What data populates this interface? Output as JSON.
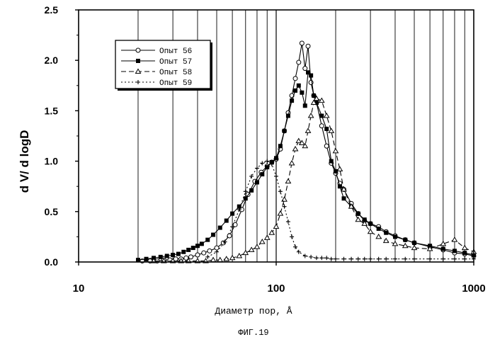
{
  "figure_caption": "ФИГ.19",
  "chart_data": {
    "type": "line",
    "xscale": "log",
    "xlim": [
      10,
      1000
    ],
    "ylim": [
      0,
      2.5
    ],
    "xlabel": "Диаметр пор, Å",
    "ylabel": "d V/ d logD",
    "x_ticks": [
      "10",
      "100",
      "1000"
    ],
    "y_ticks": [
      "0.0",
      "0.5",
      "1.0",
      "1.5",
      "2.0",
      "2.5"
    ],
    "grid": "vertical",
    "legend_position": "top-left",
    "series": [
      {
        "name": "Опыт 56",
        "marker": "open-circle",
        "line": "solid",
        "x": [
          21,
          23,
          25,
          27,
          29,
          31,
          33,
          35,
          37,
          40,
          43,
          46,
          50,
          54,
          58,
          62,
          67,
          72,
          78,
          84,
          90,
          95,
          100,
          105,
          110,
          115,
          120,
          125,
          130,
          135,
          140,
          145,
          150,
          155,
          160,
          170,
          180,
          190,
          200,
          210,
          220,
          240,
          260,
          280,
          300,
          330,
          360,
          400,
          450,
          500,
          600,
          700,
          800,
          900,
          1000
        ],
        "y": [
          0.01,
          0.01,
          0.01,
          0.02,
          0.02,
          0.03,
          0.03,
          0.04,
          0.05,
          0.07,
          0.09,
          0.11,
          0.14,
          0.19,
          0.26,
          0.37,
          0.52,
          0.67,
          0.8,
          0.89,
          0.95,
          0.99,
          1.02,
          1.12,
          1.3,
          1.48,
          1.65,
          1.82,
          1.98,
          2.17,
          1.92,
          2.14,
          1.78,
          1.65,
          1.58,
          1.35,
          1.15,
          0.98,
          0.88,
          0.78,
          0.72,
          0.58,
          0.48,
          0.41,
          0.38,
          0.35,
          0.3,
          0.26,
          0.22,
          0.19,
          0.15,
          0.12,
          0.09,
          0.08,
          0.06
        ]
      },
      {
        "name": "Опыт 57",
        "marker": "filled-square",
        "line": "solid",
        "x": [
          20,
          22,
          24,
          26,
          28,
          30,
          32,
          34,
          36,
          38,
          40,
          42,
          45,
          48,
          52,
          56,
          60,
          65,
          70,
          75,
          80,
          85,
          90,
          95,
          100,
          105,
          110,
          115,
          120,
          125,
          130,
          135,
          140,
          145,
          150,
          155,
          160,
          170,
          180,
          190,
          200,
          210,
          220,
          240,
          260,
          280,
          300,
          330,
          360,
          400,
          450,
          500,
          600,
          700,
          800,
          900,
          1000
        ],
        "y": [
          0.02,
          0.03,
          0.04,
          0.05,
          0.06,
          0.07,
          0.08,
          0.1,
          0.12,
          0.14,
          0.16,
          0.18,
          0.22,
          0.27,
          0.34,
          0.41,
          0.48,
          0.55,
          0.63,
          0.71,
          0.79,
          0.87,
          0.94,
          0.99,
          1.03,
          1.15,
          1.3,
          1.45,
          1.6,
          1.7,
          1.75,
          1.68,
          1.55,
          1.88,
          1.85,
          1.65,
          1.58,
          1.45,
          1.32,
          1.0,
          0.9,
          0.75,
          0.63,
          0.55,
          0.48,
          0.42,
          0.38,
          0.33,
          0.29,
          0.25,
          0.22,
          0.19,
          0.16,
          0.13,
          0.11,
          0.09,
          0.07
        ]
      },
      {
        "name": "Опыт 58",
        "marker": "open-triangle",
        "line": "dashed",
        "x": [
          24,
          27,
          30,
          33,
          36,
          40,
          44,
          48,
          52,
          56,
          60,
          65,
          70,
          75,
          80,
          85,
          90,
          95,
          100,
          105,
          110,
          115,
          120,
          125,
          130,
          135,
          140,
          145,
          150,
          155,
          160,
          170,
          180,
          190,
          200,
          210,
          220,
          240,
          260,
          280,
          300,
          330,
          360,
          400,
          450,
          500,
          600,
          700,
          800,
          900,
          1000
        ],
        "y": [
          0.01,
          0.01,
          0.01,
          0.01,
          0.01,
          0.01,
          0.01,
          0.02,
          0.02,
          0.03,
          0.04,
          0.06,
          0.09,
          0.12,
          0.15,
          0.2,
          0.24,
          0.29,
          0.35,
          0.48,
          0.62,
          0.8,
          0.98,
          1.12,
          1.2,
          1.18,
          1.15,
          1.3,
          1.45,
          1.58,
          1.62,
          1.6,
          1.45,
          1.3,
          1.1,
          0.92,
          0.72,
          0.55,
          0.42,
          0.38,
          0.3,
          0.25,
          0.21,
          0.18,
          0.16,
          0.14,
          0.13,
          0.18,
          0.22,
          0.14,
          0.1
        ]
      },
      {
        "name": "Опыт 59",
        "marker": "plus",
        "line": "dotted",
        "x": [
          45,
          50,
          55,
          60,
          65,
          70,
          75,
          80,
          85,
          90,
          95,
          100,
          105,
          110,
          115,
          120,
          125,
          130,
          140,
          150,
          160,
          170,
          180,
          190,
          200,
          220,
          240,
          260,
          280,
          300,
          330,
          360,
          400,
          450,
          500,
          600,
          700,
          800,
          900,
          1000
        ],
        "y": [
          0.05,
          0.1,
          0.2,
          0.35,
          0.52,
          0.7,
          0.85,
          0.93,
          0.98,
          1.0,
          0.97,
          0.85,
          0.7,
          0.55,
          0.4,
          0.25,
          0.15,
          0.1,
          0.06,
          0.05,
          0.04,
          0.04,
          0.04,
          0.03,
          0.03,
          0.03,
          0.03,
          0.03,
          0.03,
          0.03,
          0.03,
          0.03,
          0.03,
          0.03,
          0.03,
          0.03,
          0.03,
          0.03,
          0.03,
          0.03
        ]
      }
    ]
  }
}
